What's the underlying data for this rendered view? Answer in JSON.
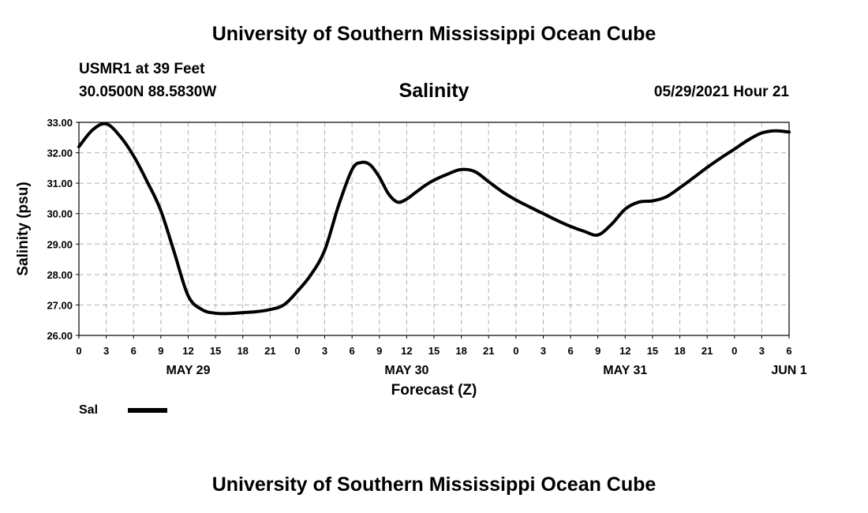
{
  "header": {
    "title": "University of Southern Mississippi Ocean Cube",
    "station": "USMR1 at 39 Feet",
    "coords": "30.0500N  88.5830W",
    "datetime": "05/29/2021 Hour 21",
    "footer_title": "University of Southern Mississippi Ocean Cube"
  },
  "chart_data": {
    "type": "line",
    "title": "Salinity",
    "xlabel": "Forecast (Z)",
    "ylabel": "Salinity (psu)",
    "ylim": [
      26.0,
      33.0
    ],
    "xlim": [
      0,
      78
    ],
    "y_ticks": [
      "26.00",
      "27.00",
      "28.00",
      "29.00",
      "30.00",
      "31.00",
      "32.00",
      "33.00"
    ],
    "x_tick_labels": [
      "0",
      "3",
      "6",
      "9",
      "12",
      "15",
      "18",
      "21",
      "0",
      "3",
      "6",
      "9",
      "12",
      "15",
      "18",
      "21",
      "0",
      "3",
      "6",
      "9",
      "12",
      "15",
      "18",
      "21",
      "0",
      "3",
      "6"
    ],
    "day_labels": [
      {
        "label": "MAY 29",
        "hour": 12
      },
      {
        "label": "MAY 30",
        "hour": 36
      },
      {
        "label": "MAY 31",
        "hour": 60
      },
      {
        "label": "JUN 1",
        "hour": 78
      }
    ],
    "grid": true,
    "legend": [
      {
        "name": "Sal",
        "color": "#000000"
      }
    ],
    "series": [
      {
        "name": "Sal",
        "color": "#000000",
        "x": [
          0,
          1.5,
          3,
          4.5,
          6,
          7.5,
          9,
          10.5,
          12,
          13.5,
          15,
          16.5,
          18,
          19.5,
          21,
          22.5,
          24,
          25.5,
          27,
          28.5,
          30,
          31,
          32,
          33,
          34,
          35,
          36,
          37,
          38,
          39,
          40.5,
          42,
          43.5,
          45,
          46.5,
          48,
          49.5,
          51,
          52.5,
          54,
          55.5,
          57,
          58.5,
          60,
          61.5,
          63,
          64.5,
          66,
          67.5,
          69,
          70.5,
          72,
          73.5,
          75,
          76.5,
          78
        ],
        "values": [
          32.2,
          32.75,
          32.95,
          32.55,
          31.9,
          31.05,
          30.1,
          28.7,
          27.3,
          26.85,
          26.73,
          26.72,
          26.75,
          26.78,
          26.85,
          27.0,
          27.45,
          28.0,
          28.8,
          30.25,
          31.45,
          31.68,
          31.6,
          31.2,
          30.65,
          30.38,
          30.48,
          30.7,
          30.92,
          31.1,
          31.3,
          31.45,
          31.38,
          31.05,
          30.72,
          30.45,
          30.22,
          30.0,
          29.78,
          29.58,
          29.42,
          29.3,
          29.65,
          30.15,
          30.38,
          30.42,
          30.55,
          30.85,
          31.18,
          31.52,
          31.83,
          32.12,
          32.42,
          32.65,
          32.72,
          32.68
        ]
      }
    ]
  }
}
